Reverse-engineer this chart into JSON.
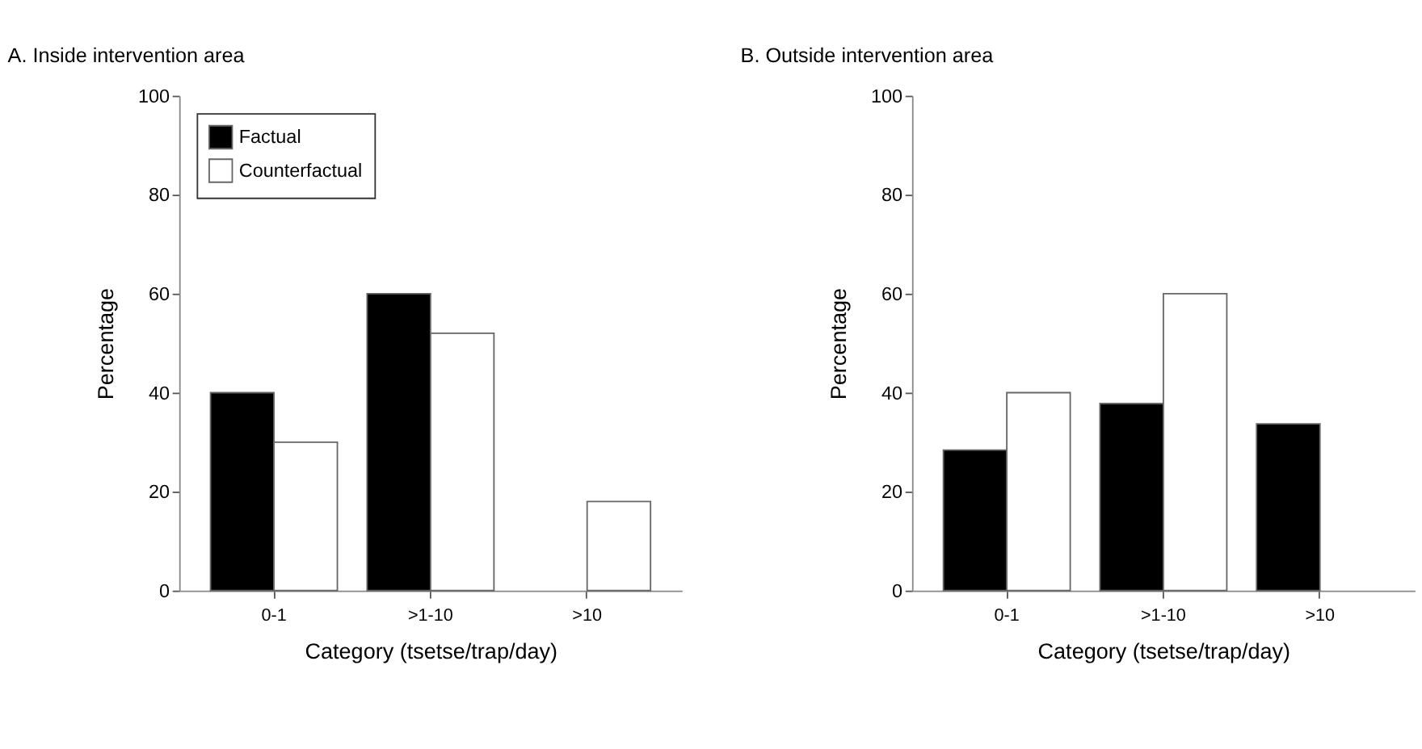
{
  "chart_data": [
    {
      "type": "bar",
      "title": "A. Inside intervention area",
      "xlabel": "Category (tsetse/trap/day)",
      "ylabel": "Percentage",
      "categories": [
        "0-1",
        ">1-10",
        ">10"
      ],
      "series": [
        {
          "name": "Factual",
          "color": "#000000",
          "values": [
            40,
            60,
            null
          ]
        },
        {
          "name": "Counterfactual",
          "color": "#ffffff",
          "values": [
            30,
            52,
            18
          ]
        }
      ],
      "ylim": [
        0,
        100
      ],
      "yticks": [
        0,
        20,
        40,
        60,
        80,
        100
      ],
      "grid": false,
      "legend": "top left"
    },
    {
      "type": "bar",
      "title": "B. Outside intervention area",
      "xlabel": "Category (tsetse/trap/day)",
      "ylabel": "Percentage",
      "categories": [
        "0-1",
        ">1-10",
        ">10"
      ],
      "series": [
        {
          "color": "#000000",
          "values": [
            28.4,
            37.8,
            33.7
          ]
        },
        {
          "color": "#ffffff",
          "values": [
            40,
            60,
            null
          ]
        }
      ],
      "ylim": [
        0,
        100
      ],
      "yticks": [
        0,
        20,
        40,
        60,
        80,
        100
      ],
      "grid": false,
      "legend": false
    }
  ]
}
